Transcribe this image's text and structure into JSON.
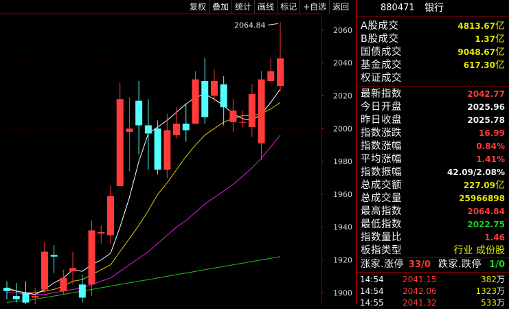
{
  "colors": {
    "up": "#ff3b3b",
    "down": "#54ffff",
    "ma5": "#ffffff",
    "ma10": "#e6c800",
    "ma20": "#e020e0",
    "ma60": "#20c020",
    "value_yellow": "#e6e600",
    "value_red": "#ff3b3b",
    "value_green": "#20d020"
  },
  "toolbar": [
    "复权",
    "叠加",
    "统计",
    "画线",
    "标记",
    "+自选",
    "返回"
  ],
  "chart_data": {
    "type": "candlestick",
    "y_ticks": [
      2060,
      2040,
      2020,
      2000,
      1980,
      1960,
      1940,
      1920,
      1900
    ],
    "ylim": [
      1893,
      2070
    ],
    "max_annotation": "2064.84",
    "candles": [
      {
        "o": 1903,
        "c": 1901,
        "h": 1907,
        "l": 1896
      },
      {
        "o": 1898,
        "c": 1896,
        "h": 1906,
        "l": 1894
      },
      {
        "o": 1900,
        "c": 1894,
        "h": 1907,
        "l": 1891
      },
      {
        "o": 1897,
        "c": 1898,
        "h": 1903,
        "l": 1890
      },
      {
        "o": 1902,
        "c": 1925,
        "h": 1931,
        "l": 1900
      },
      {
        "o": 1923,
        "c": 1922,
        "h": 1929,
        "l": 1912
      },
      {
        "o": 1901,
        "c": 1909,
        "h": 1914,
        "l": 1899
      },
      {
        "o": 1913,
        "c": 1915,
        "h": 1925,
        "l": 1905
      },
      {
        "o": 1905,
        "c": 1897,
        "h": 1911,
        "l": 1894
      },
      {
        "o": 1905,
        "c": 1938,
        "h": 1944,
        "l": 1898
      },
      {
        "o": 1936,
        "c": 1937,
        "h": 1941,
        "l": 1930
      },
      {
        "o": 1935,
        "c": 1959,
        "h": 1965,
        "l": 1930
      },
      {
        "o": 1965,
        "c": 2018,
        "h": 2028,
        "l": 1965
      },
      {
        "o": 1998,
        "c": 2000,
        "h": 2019,
        "l": 1974
      },
      {
        "o": 2017,
        "c": 2002,
        "h": 2029,
        "l": 1984
      },
      {
        "o": 2002,
        "c": 1997,
        "h": 2018,
        "l": 1975
      },
      {
        "o": 2000,
        "c": 1975,
        "h": 2005,
        "l": 1972
      },
      {
        "o": 1975,
        "c": 1999,
        "h": 2009,
        "l": 1970
      },
      {
        "o": 1996,
        "c": 2003,
        "h": 2013,
        "l": 1994
      },
      {
        "o": 2003,
        "c": 1999,
        "h": 2015,
        "l": 1992
      },
      {
        "o": 2003,
        "c": 2030,
        "h": 2035,
        "l": 2003
      },
      {
        "o": 2029,
        "c": 2007,
        "h": 2043,
        "l": 2003
      },
      {
        "o": 2020,
        "c": 2029,
        "h": 2036,
        "l": 2016
      },
      {
        "o": 2027,
        "c": 2013,
        "h": 2032,
        "l": 2002
      },
      {
        "o": 2004,
        "c": 2011,
        "h": 2018,
        "l": 1998
      },
      {
        "o": 2004,
        "c": 2004,
        "h": 2011,
        "l": 2001
      },
      {
        "o": 2001,
        "c": 2021,
        "h": 2027,
        "l": 1995
      },
      {
        "o": 1991,
        "c": 2030,
        "h": 2035,
        "l": 1981
      },
      {
        "o": 2029,
        "c": 2035,
        "h": 2043,
        "l": 2028
      },
      {
        "o": 2025.96,
        "c": 2042.77,
        "h": 2064.84,
        "l": 2022.75
      }
    ],
    "ma5": [
      1903,
      1901,
      1900,
      1899,
      1902,
      1906,
      1909,
      1914,
      1913,
      1917,
      1920,
      1924,
      1940,
      1958,
      1980,
      1997,
      2001,
      2005,
      2010,
      2015,
      2019,
      2021,
      2018,
      2014,
      2009,
      2006,
      2005,
      2009,
      2016,
      2024
    ],
    "ma10": [
      1902,
      1901,
      1900,
      1900,
      1901,
      1902,
      1904,
      1907,
      1908,
      1911,
      1914,
      1917,
      1925,
      1933,
      1941,
      1950,
      1960,
      1967,
      1975,
      1983,
      1990,
      1996,
      2000,
      2004,
      2006,
      2008,
      2008,
      2009,
      2012,
      2016
    ],
    "ma20": [
      1900,
      1900,
      1899,
      1899,
      1899,
      1900,
      1901,
      1902,
      1903,
      1905,
      1907,
      1909,
      1913,
      1917,
      1921,
      1925,
      1930,
      1935,
      1940,
      1944,
      1949,
      1954,
      1958,
      1962,
      1966,
      1971,
      1976,
      1982,
      1989,
      1996
    ],
    "ma60": [
      1894,
      1895,
      1895,
      1896,
      1897,
      1898,
      1899,
      1900,
      1901,
      1902,
      1903,
      1904,
      1905,
      1906,
      1907,
      1908,
      1909,
      1910,
      1911,
      1912,
      1913,
      1914,
      1915,
      1916,
      1917,
      1918,
      1919,
      1920,
      1921,
      1922
    ]
  },
  "panel": {
    "code": "880471",
    "name": "银行",
    "turnover": [
      {
        "label": "A股成交",
        "value": "4813.67",
        "unit": "亿"
      },
      {
        "label": "B股成交",
        "value": "1.37",
        "unit": "亿"
      },
      {
        "label": "国债成交",
        "value": "9048.67",
        "unit": "亿"
      },
      {
        "label": "基金成交",
        "value": "617.30",
        "unit": "亿"
      },
      {
        "label": "权证成交",
        "value": "",
        "unit": ""
      }
    ],
    "stats": [
      {
        "label": "最新指数",
        "value": "2042.77",
        "tone": "red"
      },
      {
        "label": "今日开盘",
        "value": "2025.96",
        "tone": "white"
      },
      {
        "label": "昨日收盘",
        "value": "2025.78",
        "tone": "white"
      },
      {
        "label": "指数涨跌",
        "value": "16.99",
        "tone": "red"
      },
      {
        "label": "指数涨幅",
        "value": "0.84%",
        "tone": "red"
      },
      {
        "label": "平均涨幅",
        "value": "1.41%",
        "tone": "red"
      },
      {
        "label": "指数振幅",
        "value": "42.09/2.08%",
        "tone": "white"
      },
      {
        "label": "总成交额",
        "value": "227.09",
        "unit": "亿",
        "tone": "yellow"
      },
      {
        "label": "总成交量",
        "value": "25966898",
        "tone": "yellow"
      },
      {
        "label": "最高指数",
        "value": "2064.84",
        "tone": "red"
      },
      {
        "label": "最低指数",
        "value": "2022.75",
        "tone": "green"
      },
      {
        "label": "指数量比",
        "value": "1.46",
        "tone": "red"
      },
      {
        "label": "板指类型",
        "value": "行业 成份股",
        "tone": "yellow"
      }
    ],
    "limit_row": {
      "up_label": "涨家.涨停",
      "up_value": "33/0",
      "down_label": "跌家.跌停",
      "down_value": "1/0"
    },
    "ticks": [
      {
        "time": "14:54",
        "price": "2041.15",
        "vol": "382",
        "unit": "万"
      },
      {
        "time": "14:54",
        "price": "2042.06",
        "vol": "1323",
        "unit": "万"
      },
      {
        "time": "14:55",
        "price": "2041.32",
        "vol": "533",
        "unit": "万"
      }
    ]
  }
}
